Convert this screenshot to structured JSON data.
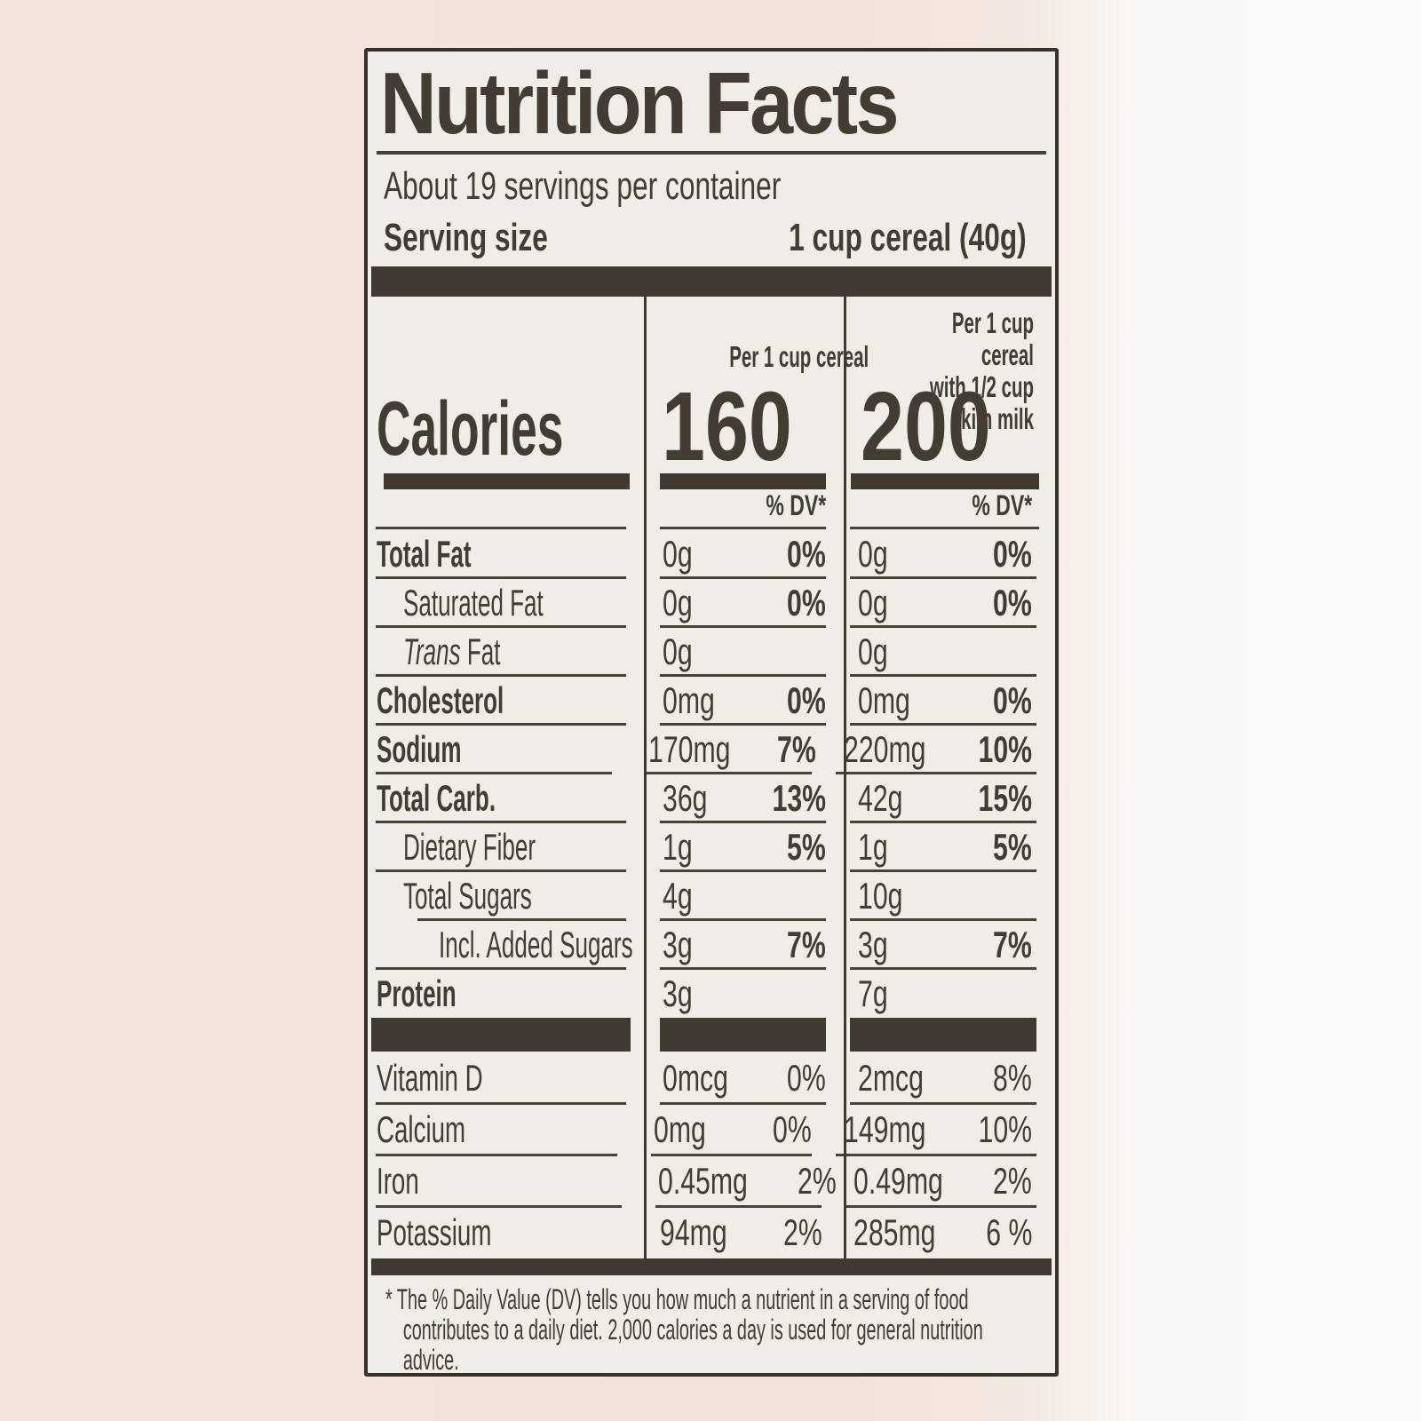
{
  "colors": {
    "page_bg": "#f1e3db",
    "label_bg": "#f0ede8",
    "ink": "#3f3932"
  },
  "label": {
    "title": "Nutrition Facts",
    "servings_per_container": "About 19 servings per container",
    "serving_size": {
      "label": "Serving size",
      "value": "1 cup cereal (40g)"
    },
    "column_headers": {
      "cereal": "Per 1 cup cereal",
      "with_milk": "Per 1 cup cereal\nwith 1/2 cup skim milk"
    },
    "calories": {
      "label": "Calories",
      "cereal": "160",
      "with_milk": "200"
    },
    "dv_header": "% DV*",
    "rows": [
      {
        "name": "Total Fat",
        "amount1": "0g",
        "dv1": "0%",
        "amount2": "0g",
        "dv2": "0%"
      },
      {
        "name": "Saturated Fat",
        "amount1": "0g",
        "dv1": "0%",
        "amount2": "0g",
        "dv2": "0%"
      },
      {
        "name_italic": "Trans",
        "name": " Fat",
        "amount1": "0g",
        "dv1": "",
        "amount2": "0g",
        "dv2": ""
      },
      {
        "name": "Cholesterol",
        "amount1": "0mg",
        "dv1": "0%",
        "amount2": "0mg",
        "dv2": "0%"
      },
      {
        "name": "Sodium",
        "amount1": "170mg",
        "dv1": "7%",
        "amount2": "220mg",
        "dv2": "10%"
      },
      {
        "name": "Total Carb.",
        "amount1": "36g",
        "dv1": "13%",
        "amount2": "42g",
        "dv2": "15%"
      },
      {
        "name": "Dietary Fiber",
        "amount1": "1g",
        "dv1": "5%",
        "amount2": "1g",
        "dv2": "5%"
      },
      {
        "name": "Total Sugars",
        "amount1": "4g",
        "dv1": "",
        "amount2": "10g",
        "dv2": ""
      },
      {
        "name": "Incl. Added Sugars",
        "amount1": "3g",
        "dv1": "7%",
        "amount2": "3g",
        "dv2": "7%"
      },
      {
        "name": "Protein",
        "amount1": "3g",
        "dv1": "",
        "amount2": "7g",
        "dv2": ""
      }
    ],
    "micronutrients": [
      {
        "name": "Vitamin D",
        "amount1": "0mcg",
        "dv1": "0%",
        "amount2": "2mcg",
        "dv2": "8%"
      },
      {
        "name": "Calcium",
        "amount1": "0mg",
        "dv1": "0%",
        "amount2": "149mg",
        "dv2": "10%"
      },
      {
        "name": "Iron",
        "amount1": "0.45mg",
        "dv1": "2%",
        "amount2": "0.49mg",
        "dv2": "2%"
      },
      {
        "name": "Potassium",
        "amount1": "94mg",
        "dv1": "2%",
        "amount2": "285mg",
        "dv2": "6 %"
      }
    ],
    "footnote": "* The % Daily Value (DV) tells you how much a nutrient in a serving of food contributes to a daily diet. 2,000 calories a day is used for general nutrition advice."
  }
}
